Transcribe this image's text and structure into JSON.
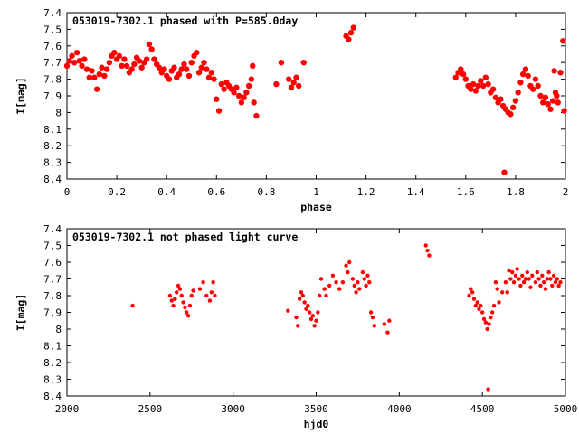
{
  "chart_data": [
    {
      "type": "scatter",
      "title": "053019-7302.1 phased with P=585.0day",
      "xlabel": "phase",
      "ylabel": "I[mag]",
      "xlim": [
        0,
        2
      ],
      "ylim": [
        8.4,
        7.4
      ],
      "y_inverted": true,
      "xticks": [
        "0",
        "0.2",
        "0.4",
        "0.6",
        "0.8",
        "1",
        "1.2",
        "1.4",
        "1.6",
        "1.8",
        "2"
      ],
      "yticks": [
        "7.4",
        "7.5",
        "7.6",
        "7.7",
        "7.8",
        "7.9",
        "8",
        "8.1",
        "8.2",
        "8.3",
        "8.4"
      ],
      "marker_color": "#ff0000",
      "series": [
        {
          "points": [
            [
              0.0,
              7.72
            ],
            [
              0.01,
              7.69
            ],
            [
              0.02,
              7.66
            ],
            [
              0.03,
              7.7
            ],
            [
              0.04,
              7.64
            ],
            [
              0.05,
              7.69
            ],
            [
              0.06,
              7.72
            ],
            [
              0.07,
              7.68
            ],
            [
              0.08,
              7.74
            ],
            [
              0.09,
              7.79
            ],
            [
              0.1,
              7.75
            ],
            [
              0.11,
              7.79
            ],
            [
              0.12,
              7.86
            ],
            [
              0.13,
              7.77
            ],
            [
              0.14,
              7.73
            ],
            [
              0.15,
              7.78
            ],
            [
              0.16,
              7.74
            ],
            [
              0.17,
              7.7
            ],
            [
              0.18,
              7.66
            ],
            [
              0.19,
              7.64
            ],
            [
              0.2,
              7.68
            ],
            [
              0.21,
              7.66
            ],
            [
              0.22,
              7.72
            ],
            [
              0.23,
              7.68
            ],
            [
              0.24,
              7.72
            ],
            [
              0.25,
              7.76
            ],
            [
              0.26,
              7.74
            ],
            [
              0.27,
              7.71
            ],
            [
              0.28,
              7.67
            ],
            [
              0.29,
              7.69
            ],
            [
              0.3,
              7.73
            ],
            [
              0.31,
              7.7
            ],
            [
              0.32,
              7.68
            ],
            [
              0.33,
              7.59
            ],
            [
              0.34,
              7.62
            ],
            [
              0.35,
              7.68
            ],
            [
              0.36,
              7.71
            ],
            [
              0.37,
              7.73
            ],
            [
              0.38,
              7.76
            ],
            [
              0.39,
              7.74
            ],
            [
              0.4,
              7.78
            ],
            [
              0.41,
              7.8
            ],
            [
              0.42,
              7.75
            ],
            [
              0.43,
              7.73
            ],
            [
              0.44,
              7.79
            ],
            [
              0.45,
              7.77
            ],
            [
              0.46,
              7.74
            ],
            [
              0.47,
              7.71
            ],
            [
              0.48,
              7.74
            ],
            [
              0.49,
              7.78
            ],
            [
              0.5,
              7.7
            ],
            [
              0.51,
              7.66
            ],
            [
              0.52,
              7.64
            ],
            [
              0.53,
              7.76
            ],
            [
              0.54,
              7.73
            ],
            [
              0.55,
              7.7
            ],
            [
              0.56,
              7.74
            ],
            [
              0.57,
              7.79
            ],
            [
              0.58,
              7.76
            ],
            [
              0.59,
              7.8
            ],
            [
              0.6,
              7.92
            ],
            [
              0.61,
              7.99
            ],
            [
              0.62,
              7.83
            ],
            [
              0.63,
              7.86
            ],
            [
              0.64,
              7.82
            ],
            [
              0.65,
              7.84
            ],
            [
              0.66,
              7.86
            ],
            [
              0.67,
              7.88
            ],
            [
              0.68,
              7.85
            ],
            [
              0.69,
              7.9
            ],
            [
              0.7,
              7.94
            ],
            [
              0.71,
              7.91
            ],
            [
              0.72,
              7.88
            ],
            [
              0.73,
              7.84
            ],
            [
              0.74,
              7.8
            ],
            [
              0.75,
              7.94
            ],
            [
              0.76,
              8.02
            ],
            [
              0.745,
              7.72
            ],
            [
              0.84,
              7.83
            ],
            [
              0.86,
              7.7
            ],
            [
              0.89,
              7.8
            ],
            [
              0.9,
              7.85
            ],
            [
              0.91,
              7.82
            ],
            [
              0.92,
              7.79
            ],
            [
              0.93,
              7.84
            ],
            [
              0.95,
              7.7
            ],
            [
              1.12,
              7.54
            ],
            [
              1.13,
              7.56
            ],
            [
              1.14,
              7.52
            ],
            [
              1.15,
              7.49
            ],
            [
              1.56,
              7.79
            ],
            [
              1.57,
              7.76
            ],
            [
              1.58,
              7.74
            ],
            [
              1.59,
              7.77
            ],
            [
              1.6,
              7.8
            ],
            [
              1.61,
              7.84
            ],
            [
              1.62,
              7.86
            ],
            [
              1.63,
              7.83
            ],
            [
              1.64,
              7.87
            ],
            [
              1.65,
              7.84
            ],
            [
              1.66,
              7.81
            ],
            [
              1.67,
              7.84
            ],
            [
              1.68,
              7.79
            ],
            [
              1.69,
              7.83
            ],
            [
              1.7,
              7.88
            ],
            [
              1.71,
              7.86
            ],
            [
              1.72,
              7.91
            ],
            [
              1.73,
              7.94
            ],
            [
              1.74,
              7.92
            ],
            [
              1.75,
              7.96
            ],
            [
              1.76,
              7.98
            ],
            [
              1.77,
              8.0
            ],
            [
              1.78,
              8.01
            ],
            [
              1.79,
              7.97
            ],
            [
              1.8,
              7.93
            ],
            [
              1.81,
              7.88
            ],
            [
              1.82,
              7.82
            ],
            [
              1.83,
              7.77
            ],
            [
              1.84,
              7.74
            ],
            [
              1.85,
              7.78
            ],
            [
              1.86,
              7.84
            ],
            [
              1.87,
              7.86
            ],
            [
              1.88,
              7.8
            ],
            [
              1.89,
              7.84
            ],
            [
              1.9,
              7.9
            ],
            [
              1.91,
              7.94
            ],
            [
              1.92,
              7.91
            ],
            [
              1.93,
              7.95
            ],
            [
              1.94,
              7.98
            ],
            [
              1.95,
              7.93
            ],
            [
              1.96,
              7.88
            ],
            [
              1.97,
              7.94
            ],
            [
              1.98,
              7.76
            ],
            [
              1.99,
              7.57
            ],
            [
              1.995,
              7.99
            ],
            [
              1.755,
              8.36
            ],
            [
              1.955,
              7.75
            ],
            [
              1.965,
              7.9
            ]
          ]
        }
      ]
    },
    {
      "type": "scatter",
      "title": "053019-7302.1 not phased light curve",
      "xlabel": "hjd0",
      "ylabel": "I[mag]",
      "xlim": [
        2000,
        5000
      ],
      "ylim": [
        8.4,
        7.4
      ],
      "y_inverted": true,
      "xticks": [
        "2000",
        "2500",
        "3000",
        "3500",
        "4000",
        "4500",
        "5000"
      ],
      "yticks": [
        "7.4",
        "7.5",
        "7.6",
        "7.7",
        "7.8",
        "7.9",
        "8",
        "8.1",
        "8.2",
        "8.3",
        "8.4"
      ],
      "marker_color": "#ff0000",
      "series": [
        {
          "points": [
            [
              2395,
              7.86
            ],
            [
              2620,
              7.8
            ],
            [
              2630,
              7.83
            ],
            [
              2640,
              7.86
            ],
            [
              2650,
              7.82
            ],
            [
              2660,
              7.78
            ],
            [
              2670,
              7.74
            ],
            [
              2680,
              7.76
            ],
            [
              2690,
              7.8
            ],
            [
              2700,
              7.84
            ],
            [
              2710,
              7.87
            ],
            [
              2720,
              7.9
            ],
            [
              2730,
              7.92
            ],
            [
              2740,
              7.86
            ],
            [
              2750,
              7.8
            ],
            [
              2760,
              7.77
            ],
            [
              2800,
              7.76
            ],
            [
              2820,
              7.72
            ],
            [
              2840,
              7.8
            ],
            [
              2860,
              7.83
            ],
            [
              2870,
              7.78
            ],
            [
              2880,
              7.72
            ],
            [
              2890,
              7.8
            ],
            [
              3330,
              7.89
            ],
            [
              3380,
              7.93
            ],
            [
              3390,
              7.98
            ],
            [
              3400,
              7.82
            ],
            [
              3410,
              7.78
            ],
            [
              3420,
              7.8
            ],
            [
              3430,
              7.84
            ],
            [
              3440,
              7.88
            ],
            [
              3450,
              7.86
            ],
            [
              3460,
              7.9
            ],
            [
              3470,
              7.94
            ],
            [
              3480,
              7.92
            ],
            [
              3490,
              7.98
            ],
            [
              3500,
              7.95
            ],
            [
              3510,
              7.9
            ],
            [
              3520,
              7.8
            ],
            [
              3530,
              7.7
            ],
            [
              3550,
              7.76
            ],
            [
              3560,
              7.8
            ],
            [
              3580,
              7.74
            ],
            [
              3600,
              7.68
            ],
            [
              3620,
              7.72
            ],
            [
              3640,
              7.76
            ],
            [
              3660,
              7.72
            ],
            [
              3680,
              7.62
            ],
            [
              3690,
              7.66
            ],
            [
              3700,
              7.6
            ],
            [
              3720,
              7.7
            ],
            [
              3730,
              7.74
            ],
            [
              3740,
              7.78
            ],
            [
              3750,
              7.72
            ],
            [
              3760,
              7.76
            ],
            [
              3780,
              7.66
            ],
            [
              3790,
              7.7
            ],
            [
              3800,
              7.74
            ],
            [
              3810,
              7.68
            ],
            [
              3820,
              7.72
            ],
            [
              3830,
              7.9
            ],
            [
              3840,
              7.93
            ],
            [
              3850,
              7.98
            ],
            [
              3910,
              7.97
            ],
            [
              3930,
              8.02
            ],
            [
              3940,
              7.95
            ],
            [
              4160,
              7.5
            ],
            [
              4170,
              7.53
            ],
            [
              4180,
              7.56
            ],
            [
              4420,
              7.8
            ],
            [
              4430,
              7.76
            ],
            [
              4440,
              7.78
            ],
            [
              4450,
              7.82
            ],
            [
              4460,
              7.86
            ],
            [
              4470,
              7.84
            ],
            [
              4480,
              7.88
            ],
            [
              4490,
              7.86
            ],
            [
              4500,
              7.9
            ],
            [
              4510,
              7.94
            ],
            [
              4520,
              7.96
            ],
            [
              4530,
              8.0
            ],
            [
              4540,
              7.97
            ],
            [
              4550,
              7.93
            ],
            [
              4560,
              7.9
            ],
            [
              4570,
              7.86
            ],
            [
              4580,
              7.72
            ],
            [
              4590,
              7.76
            ],
            [
              4600,
              7.84
            ],
            [
              4620,
              7.78
            ],
            [
              4640,
              7.72
            ],
            [
              4650,
              7.78
            ],
            [
              4660,
              7.65
            ],
            [
              4670,
              7.7
            ],
            [
              4680,
              7.66
            ],
            [
              4690,
              7.72
            ],
            [
              4700,
              7.68
            ],
            [
              4710,
              7.64
            ],
            [
              4720,
              7.7
            ],
            [
              4730,
              7.74
            ],
            [
              4740,
              7.68
            ],
            [
              4750,
              7.72
            ],
            [
              4760,
              7.7
            ],
            [
              4770,
              7.66
            ],
            [
              4780,
              7.7
            ],
            [
              4790,
              7.75
            ],
            [
              4800,
              7.68
            ],
            [
              4820,
              7.72
            ],
            [
              4830,
              7.66
            ],
            [
              4840,
              7.7
            ],
            [
              4850,
              7.74
            ],
            [
              4860,
              7.68
            ],
            [
              4870,
              7.72
            ],
            [
              4880,
              7.76
            ],
            [
              4890,
              7.7
            ],
            [
              4900,
              7.66
            ],
            [
              4910,
              7.7
            ],
            [
              4920,
              7.74
            ],
            [
              4930,
              7.68
            ],
            [
              4940,
              7.72
            ],
            [
              4950,
              7.7
            ],
            [
              4960,
              7.74
            ],
            [
              4970,
              7.72
            ],
            [
              4535,
              8.36
            ]
          ]
        }
      ]
    }
  ]
}
